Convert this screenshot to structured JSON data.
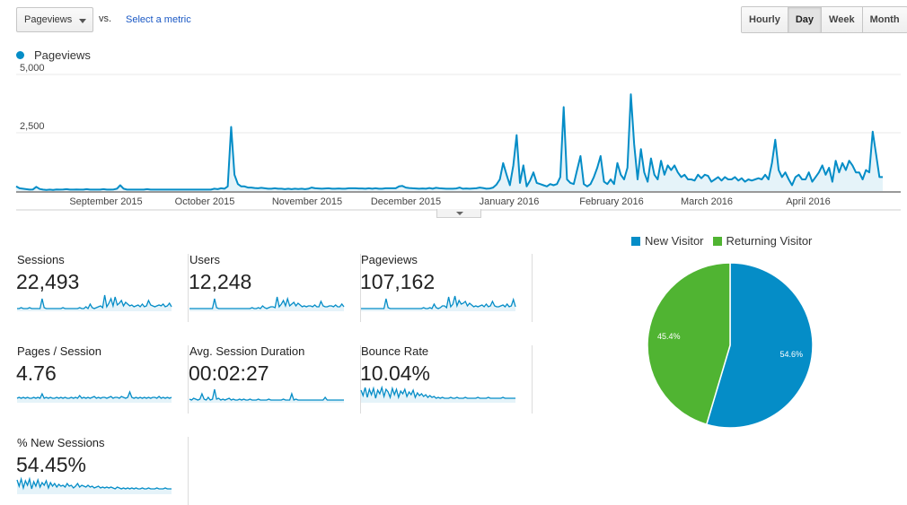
{
  "toolbar": {
    "metric_select": "Pageviews",
    "vs_label": "vs.",
    "select_metric_link": "Select a metric",
    "period_buttons": [
      {
        "label": "Hourly",
        "active": false
      },
      {
        "label": "Day",
        "active": true
      },
      {
        "label": "Week",
        "active": false
      },
      {
        "label": "Month",
        "active": false
      }
    ]
  },
  "colors": {
    "series": "#058dc7",
    "series_fill": "#e5f3f9",
    "new_visitor": "#058dc7",
    "returning_visitor": "#50b432",
    "grid": "#e8e8e8"
  },
  "chart_data": [
    {
      "type": "area",
      "legend": [
        "Pageviews"
      ],
      "legend_position": "top-left",
      "ylim": [
        0,
        5000
      ],
      "yticks": [
        "5,000",
        "2,500"
      ],
      "xtick_labels": [
        "September 2015",
        "October 2015",
        "November 2015",
        "December 2015",
        "January 2016",
        "February 2016",
        "March 2016",
        "April 2016"
      ],
      "grid": true,
      "series": [
        {
          "name": "Pageviews",
          "values": [
            200,
            120,
            100,
            80,
            60,
            70,
            180,
            90,
            60,
            50,
            60,
            50,
            70,
            60,
            70,
            80,
            60,
            60,
            70,
            60,
            60,
            80,
            60,
            60,
            60,
            60,
            80,
            60,
            60,
            70,
            100,
            250,
            100,
            60,
            60,
            60,
            60,
            60,
            60,
            80,
            60,
            60,
            60,
            60,
            60,
            60,
            60,
            60,
            60,
            60,
            60,
            60,
            60,
            60,
            60,
            60,
            60,
            60,
            60,
            100,
            80,
            120,
            100,
            200,
            2750,
            700,
            300,
            200,
            200,
            150,
            150,
            130,
            120,
            140,
            120,
            100,
            100,
            120,
            100,
            100,
            80,
            100,
            80,
            100,
            90,
            100,
            80,
            100,
            150,
            120,
            110,
            100,
            110,
            120,
            100,
            100,
            110,
            100,
            100,
            120,
            120,
            120,
            110,
            110,
            100,
            120,
            100,
            120,
            100,
            100,
            120,
            120,
            120,
            120,
            200,
            220,
            150,
            130,
            120,
            110,
            100,
            110,
            100,
            130,
            100,
            140,
            120,
            110,
            100,
            100,
            100,
            110,
            150,
            100,
            110,
            100,
            110,
            120,
            150,
            130,
            100,
            110,
            150,
            280,
            500,
            1200,
            700,
            250,
            1100,
            2400,
            350,
            1100,
            200,
            450,
            800,
            350,
            300,
            250,
            200,
            300,
            250,
            300,
            600,
            3600,
            500,
            350,
            300,
            900,
            1500,
            300,
            200,
            300,
            600,
            1000,
            1500,
            400,
            300,
            500,
            300,
            1200,
            700,
            500,
            1000,
            4150,
            2000,
            500,
            1800,
            800,
            400,
            1400,
            700,
            500,
            1300,
            700,
            1100,
            900,
            1100,
            800,
            600,
            700,
            500,
            500,
            450,
            700,
            550,
            700,
            650,
            400,
            500,
            600,
            450,
            600,
            500,
            500,
            600,
            450,
            550,
            400,
            500,
            450,
            500,
            550,
            500,
            700,
            500,
            1200,
            2200,
            900,
            600,
            800,
            500,
            250,
            600,
            700,
            500,
            500,
            800,
            400,
            600,
            800,
            1100,
            700,
            1000,
            400,
            1300,
            800,
            1200,
            900,
            1300,
            1100,
            800,
            800,
            500,
            900,
            800,
            2550,
            1600,
            600,
            600
          ]
        }
      ]
    },
    {
      "type": "pie",
      "legend": [
        "New Visitor",
        "Returning Visitor"
      ],
      "legend_position": "top",
      "values": [
        54.6,
        45.4
      ],
      "slice_labels": [
        "54.6%",
        "45.4%"
      ]
    }
  ],
  "tiles": [
    {
      "label": "Sessions",
      "value": "22,493",
      "spark": [
        3,
        3,
        4,
        3,
        3,
        3,
        4,
        3,
        3,
        3,
        3,
        3,
        14,
        4,
        3,
        3,
        3,
        3,
        3,
        3,
        3,
        3,
        4,
        3,
        3,
        3,
        3,
        3,
        3,
        3,
        4,
        3,
        3,
        5,
        3,
        8,
        4,
        3,
        4,
        5,
        6,
        4,
        18,
        5,
        9,
        14,
        6,
        16,
        7,
        9,
        12,
        6,
        10,
        8,
        6,
        7,
        5,
        6,
        7,
        5,
        8,
        5,
        6,
        12,
        7,
        6,
        5,
        6,
        7,
        6,
        8,
        5,
        6,
        9,
        5
      ]
    },
    {
      "label": "Users",
      "value": "12,248",
      "spark": [
        3,
        3,
        3,
        3,
        3,
        3,
        3,
        3,
        3,
        3,
        3,
        3,
        14,
        4,
        3,
        3,
        3,
        3,
        3,
        3,
        3,
        3,
        3,
        3,
        3,
        3,
        3,
        3,
        3,
        3,
        4,
        3,
        3,
        4,
        3,
        6,
        4,
        3,
        4,
        5,
        5,
        4,
        16,
        5,
        8,
        12,
        6,
        14,
        6,
        8,
        10,
        6,
        9,
        7,
        5,
        6,
        5,
        6,
        6,
        5,
        7,
        5,
        5,
        11,
        6,
        5,
        5,
        6,
        6,
        5,
        7,
        5,
        5,
        8,
        5
      ]
    },
    {
      "label": "Pageviews",
      "value": "107,162",
      "spark": [
        3,
        3,
        3,
        3,
        3,
        3,
        3,
        3,
        3,
        3,
        3,
        3,
        14,
        4,
        3,
        3,
        3,
        3,
        3,
        3,
        3,
        3,
        3,
        3,
        3,
        3,
        3,
        3,
        3,
        3,
        4,
        3,
        3,
        4,
        3,
        8,
        4,
        3,
        4,
        6,
        6,
        4,
        16,
        5,
        8,
        17,
        6,
        12,
        8,
        9,
        11,
        6,
        9,
        7,
        5,
        6,
        5,
        6,
        7,
        5,
        8,
        5,
        6,
        11,
        6,
        5,
        5,
        6,
        7,
        5,
        8,
        5,
        6,
        13,
        5
      ]
    },
    {
      "label": "Pages / Session",
      "value": "4.76",
      "spark": [
        5,
        6,
        5,
        6,
        5,
        6,
        5,
        5,
        6,
        5,
        6,
        5,
        10,
        5,
        6,
        5,
        6,
        5,
        5,
        6,
        5,
        6,
        5,
        6,
        5,
        5,
        6,
        5,
        6,
        5,
        8,
        5,
        6,
        5,
        6,
        5,
        6,
        7,
        5,
        6,
        5,
        6,
        6,
        5,
        6,
        7,
        5,
        6,
        6,
        5,
        7,
        6,
        5,
        6,
        12,
        6,
        5,
        6,
        5,
        6,
        5,
        6,
        5,
        6,
        5,
        6,
        6,
        5,
        7,
        5,
        6,
        5,
        6,
        5,
        6
      ]
    },
    {
      "label": "Avg. Session Duration",
      "value": "00:02:27",
      "spark": [
        4,
        3,
        5,
        4,
        3,
        4,
        10,
        4,
        3,
        6,
        3,
        4,
        15,
        4,
        5,
        3,
        4,
        3,
        4,
        5,
        3,
        4,
        3,
        3,
        4,
        3,
        4,
        3,
        3,
        4,
        3,
        3,
        3,
        4,
        3,
        3,
        3,
        3,
        4,
        3,
        3,
        3,
        3,
        3,
        3,
        4,
        3,
        3,
        3,
        10,
        3,
        4,
        3,
        3,
        3,
        3,
        3,
        3,
        3,
        3,
        3,
        3,
        3,
        3,
        3,
        6,
        3,
        3,
        3,
        3,
        3,
        3,
        3,
        3,
        3
      ]
    },
    {
      "label": "Bounce Rate",
      "value": "10.04%",
      "spark": [
        14,
        8,
        17,
        6,
        15,
        9,
        16,
        5,
        14,
        10,
        17,
        7,
        15,
        12,
        6,
        16,
        9,
        15,
        6,
        13,
        10,
        15,
        7,
        12,
        9,
        14,
        6,
        11,
        8,
        10,
        7,
        9,
        6,
        8,
        6,
        7,
        5,
        6,
        5,
        6,
        5,
        5,
        5,
        6,
        5,
        5,
        6,
        5,
        5,
        5,
        6,
        5,
        5,
        5,
        5,
        5,
        6,
        5,
        5,
        5,
        5,
        6,
        5,
        5,
        5,
        5,
        5,
        5,
        6,
        5,
        5,
        5,
        5,
        5,
        5
      ]
    },
    {
      "label": "% New Sessions",
      "value": "54.45%",
      "spark": [
        16,
        9,
        17,
        7,
        15,
        10,
        17,
        6,
        14,
        9,
        16,
        8,
        13,
        10,
        15,
        7,
        13,
        9,
        12,
        8,
        11,
        9,
        10,
        8,
        12,
        9,
        10,
        7,
        9,
        12,
        8,
        10,
        9,
        8,
        10,
        8,
        9,
        7,
        8,
        9,
        7,
        8,
        7,
        8,
        7,
        8,
        7,
        6,
        8,
        7,
        6,
        7,
        6,
        7,
        6,
        7,
        6,
        7,
        6,
        6,
        7,
        6,
        6,
        7,
        6,
        6,
        6,
        7,
        6,
        6,
        6,
        7,
        6,
        6,
        6
      ]
    }
  ]
}
